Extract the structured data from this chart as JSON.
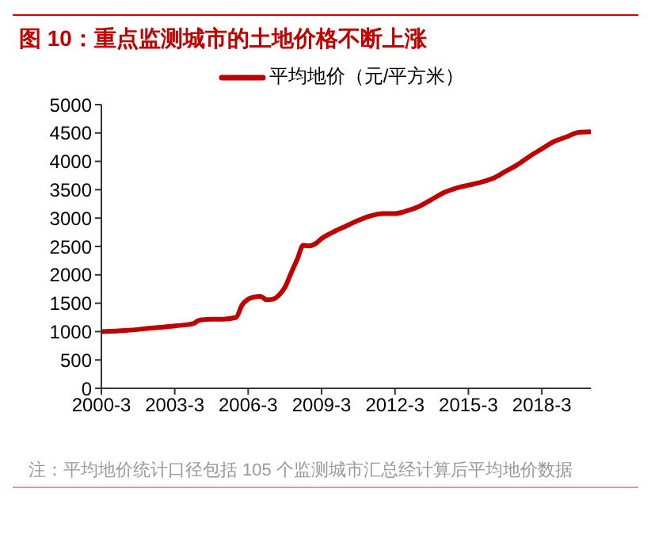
{
  "chart_data": {
    "type": "line",
    "title": "图 10：重点监测城市的土地价格不断上涨",
    "annotations": [
      "注：平均地价统计口径包括 105 个监测城市汇总经计算后平均地价数据"
    ],
    "x": [
      "2000-03",
      "2001-03",
      "2002-03",
      "2003-03",
      "2003-12",
      "2004-03",
      "2004-09",
      "2005-03",
      "2005-09",
      "2005-12",
      "2006-03",
      "2006-06",
      "2006-09",
      "2006-12",
      "2007-03",
      "2007-06",
      "2007-09",
      "2007-12",
      "2008-03",
      "2008-06",
      "2008-09",
      "2008-12",
      "2009-03",
      "2009-09",
      "2010-03",
      "2010-09",
      "2011-03",
      "2011-09",
      "2012-03",
      "2012-09",
      "2013-03",
      "2013-09",
      "2014-03",
      "2014-09",
      "2015-03",
      "2015-09",
      "2016-03",
      "2016-09",
      "2017-03",
      "2017-09",
      "2018-03",
      "2018-09",
      "2019-03",
      "2019-09",
      "2020-03"
    ],
    "series": [
      {
        "name": "平均地价（元/平方米）",
        "color": "#c00000",
        "values": [
          1000,
          1020,
          1060,
          1100,
          1140,
          1200,
          1220,
          1220,
          1250,
          1470,
          1570,
          1610,
          1620,
          1560,
          1570,
          1640,
          1780,
          2030,
          2270,
          2520,
          2510,
          2550,
          2640,
          2760,
          2860,
          2960,
          3040,
          3080,
          3080,
          3130,
          3210,
          3330,
          3450,
          3530,
          3580,
          3630,
          3700,
          3820,
          3940,
          4090,
          4220,
          4350,
          4430,
          4510,
          4520
        ]
      }
    ],
    "xlim": [
      "2000-03",
      "2020-03"
    ],
    "xticks": [
      {
        "value": "2000-03",
        "label": "2000-3"
      },
      {
        "value": "2003-03",
        "label": "2003-3"
      },
      {
        "value": "2006-03",
        "label": "2006-3"
      },
      {
        "value": "2009-03",
        "label": "2009-3"
      },
      {
        "value": "2012-03",
        "label": "2012-3"
      },
      {
        "value": "2015-03",
        "label": "2015-3"
      },
      {
        "value": "2018-03",
        "label": "2018-3"
      }
    ],
    "ylim": [
      0,
      5000
    ],
    "yticks": [
      0,
      500,
      1000,
      1500,
      2000,
      2500,
      3000,
      3500,
      4000,
      4500,
      5000
    ],
    "grid": false,
    "legend": "top",
    "marker": "none",
    "line_style": "solid"
  }
}
